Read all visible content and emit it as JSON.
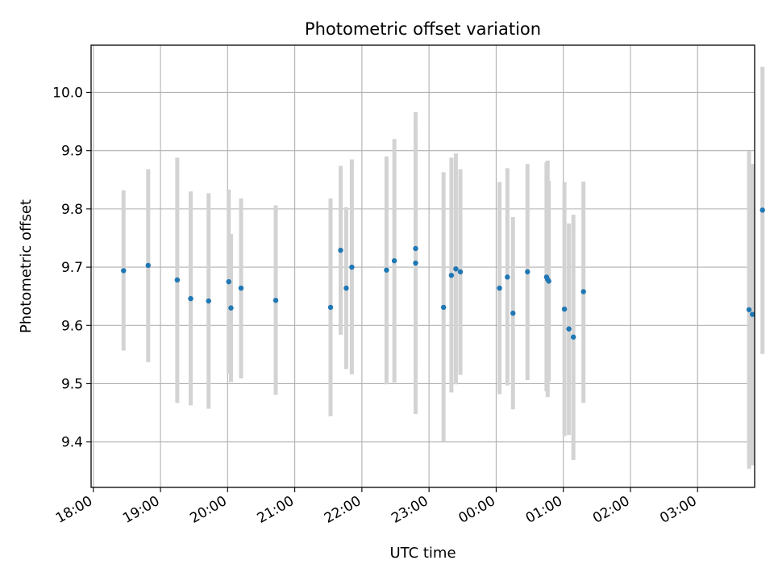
{
  "chart_data": {
    "type": "scatter",
    "title": "Photometric offset variation",
    "xlabel": "UTC time",
    "ylabel": "Photometric offset",
    "x_tick_labels": [
      "18:00",
      "19:00",
      "20:00",
      "21:00",
      "22:00",
      "23:00",
      "00:00",
      "01:00",
      "02:00",
      "03:00"
    ],
    "y_tick_labels": [
      "9.4",
      "9.5",
      "9.6",
      "9.7",
      "9.8",
      "9.9",
      "10.0"
    ],
    "y_ticks": [
      9.4,
      9.5,
      9.6,
      9.7,
      9.8,
      9.9,
      10.0
    ],
    "xlim": [
      "17:58",
      "03:51"
    ],
    "ylim": [
      9.322,
      10.081
    ],
    "grid": true,
    "legend": "none",
    "colors": {
      "points": "#1f77b4",
      "error_bars": "#d3d3d3",
      "grid": "#b0b0b0"
    },
    "series": [
      {
        "points": [
          {
            "x": "18:27",
            "y": 9.694,
            "ylow": 9.557,
            "yhigh": 9.832
          },
          {
            "x": "18:49",
            "y": 9.703,
            "ylow": 9.537,
            "yhigh": 9.868
          },
          {
            "x": "19:15",
            "y": 9.678,
            "ylow": 9.467,
            "yhigh": 9.888
          },
          {
            "x": "19:27",
            "y": 9.646,
            "ylow": 9.463,
            "yhigh": 9.83
          },
          {
            "x": "19:43",
            "y": 9.642,
            "ylow": 9.457,
            "yhigh": 9.827
          },
          {
            "x": "20:01",
            "y": 9.675,
            "ylow": 9.517,
            "yhigh": 9.833
          },
          {
            "x": "20:03",
            "y": 9.63,
            "ylow": 9.503,
            "yhigh": 9.757
          },
          {
            "x": "20:12",
            "y": 9.664,
            "ylow": 9.509,
            "yhigh": 9.818
          },
          {
            "x": "20:43",
            "y": 9.643,
            "ylow": 9.481,
            "yhigh": 9.806
          },
          {
            "x": "21:32",
            "y": 9.631,
            "ylow": 9.444,
            "yhigh": 9.818
          },
          {
            "x": "21:41",
            "y": 9.729,
            "ylow": 9.584,
            "yhigh": 9.874
          },
          {
            "x": "21:46",
            "y": 9.664,
            "ylow": 9.525,
            "yhigh": 9.803
          },
          {
            "x": "21:51",
            "y": 9.7,
            "ylow": 9.516,
            "yhigh": 9.885
          },
          {
            "x": "22:22",
            "y": 9.695,
            "ylow": 9.499,
            "yhigh": 9.89
          },
          {
            "x": "22:29",
            "y": 9.711,
            "ylow": 9.502,
            "yhigh": 9.92
          },
          {
            "x": "22:48",
            "y": 9.732,
            "ylow": 9.52,
            "yhigh": 9.945
          },
          {
            "x": "22:48",
            "y": 9.707,
            "ylow": 9.448,
            "yhigh": 9.966
          },
          {
            "x": "23:13",
            "y": 9.631,
            "ylow": 9.4,
            "yhigh": 9.863
          },
          {
            "x": "23:20",
            "y": 9.686,
            "ylow": 9.485,
            "yhigh": 9.888
          },
          {
            "x": "23:24",
            "y": 9.697,
            "ylow": 9.499,
            "yhigh": 9.895
          },
          {
            "x": "23:28",
            "y": 9.692,
            "ylow": 9.515,
            "yhigh": 9.868
          },
          {
            "x": "00:03",
            "y": 9.664,
            "ylow": 9.482,
            "yhigh": 9.846
          },
          {
            "x": "00:10",
            "y": 9.683,
            "ylow": 9.497,
            "yhigh": 9.87
          },
          {
            "x": "00:15",
            "y": 9.621,
            "ylow": 9.456,
            "yhigh": 9.786
          },
          {
            "x": "00:28",
            "y": 9.692,
            "ylow": 9.506,
            "yhigh": 9.877
          },
          {
            "x": "00:45",
            "y": 9.683,
            "ylow": 9.487,
            "yhigh": 9.88
          },
          {
            "x": "00:46",
            "y": 9.679,
            "ylow": 9.477,
            "yhigh": 9.883
          },
          {
            "x": "00:47",
            "y": 9.676,
            "ylow": 9.504,
            "yhigh": 9.848
          },
          {
            "x": "01:01",
            "y": 9.628,
            "ylow": 9.41,
            "yhigh": 9.846
          },
          {
            "x": "01:05",
            "y": 9.594,
            "ylow": 9.412,
            "yhigh": 9.775
          },
          {
            "x": "01:09",
            "y": 9.58,
            "ylow": 9.369,
            "yhigh": 9.79
          },
          {
            "x": "01:18",
            "y": 9.658,
            "ylow": 9.467,
            "yhigh": 9.847
          },
          {
            "x": "03:46",
            "y": 9.627,
            "ylow": 9.354,
            "yhigh": 9.899
          },
          {
            "x": "03:49",
            "y": 9.619,
            "ylow": 9.36,
            "yhigh": 9.877
          },
          {
            "x": "03:58",
            "y": 9.798,
            "ylow": 9.551,
            "yhigh": 10.044
          }
        ]
      }
    ]
  }
}
